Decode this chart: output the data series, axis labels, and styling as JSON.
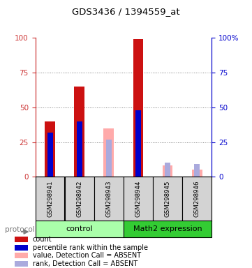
{
  "title": "GDS3436 / 1394559_at",
  "samples": [
    "GSM298941",
    "GSM298942",
    "GSM298943",
    "GSM298944",
    "GSM298945",
    "GSM298946"
  ],
  "count_values": [
    40,
    65,
    null,
    99,
    null,
    null
  ],
  "rank_values": [
    32,
    40,
    null,
    48,
    null,
    null
  ],
  "absent_value_values": [
    null,
    null,
    35,
    null,
    8,
    5
  ],
  "absent_rank_values": [
    null,
    null,
    27,
    null,
    10,
    9
  ],
  "color_count": "#cc1111",
  "color_rank": "#0000cc",
  "color_absent_value": "#ffaaaa",
  "color_absent_rank": "#aaaadd",
  "ylim": [
    0,
    100
  ],
  "group_control_color": "#aaffaa",
  "group_math2_color": "#33cc33",
  "legend_items": [
    {
      "label": "count",
      "color": "#cc1111"
    },
    {
      "label": "percentile rank within the sample",
      "color": "#0000cc"
    },
    {
      "label": "value, Detection Call = ABSENT",
      "color": "#ffaaaa"
    },
    {
      "label": "rank, Detection Call = ABSENT",
      "color": "#aaaadd"
    }
  ]
}
